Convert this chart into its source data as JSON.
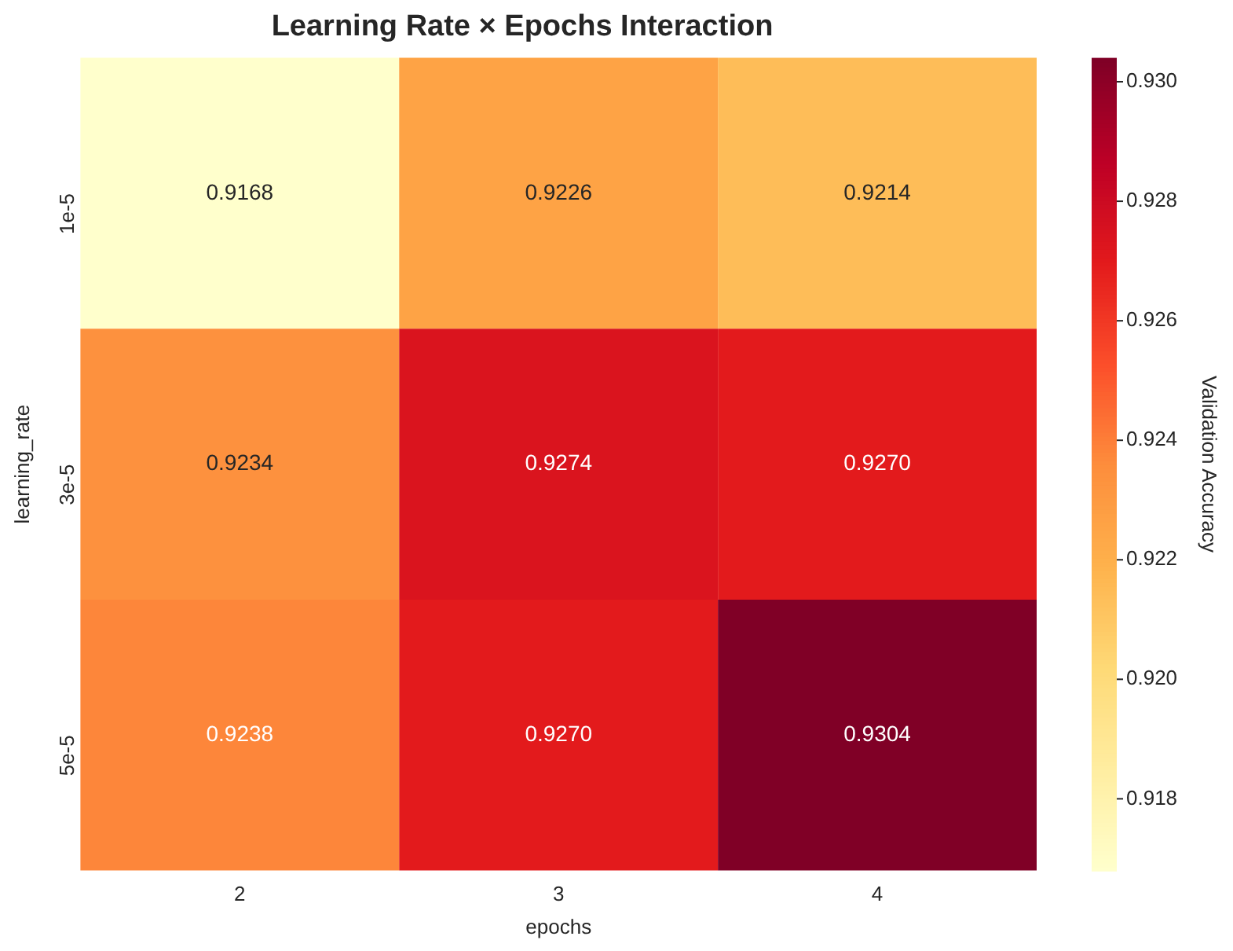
{
  "chart_data": {
    "type": "heatmap",
    "title": "Learning Rate × Epochs Interaction",
    "xlabel": "epochs",
    "ylabel": "learning_rate",
    "clabel": "Validation Accuracy",
    "categories": [
      "2",
      "3",
      "4"
    ],
    "y_categories": [
      "1e-5",
      "3e-5",
      "5e-5"
    ],
    "cells": [
      [
        0.9168,
        0.9226,
        0.9214
      ],
      [
        0.9234,
        0.9274,
        0.927
      ],
      [
        0.9238,
        0.927,
        0.9304
      ]
    ],
    "cell_labels": [
      [
        "0.9168",
        "0.9226",
        "0.9214"
      ],
      [
        "0.9234",
        "0.9274",
        "0.9270"
      ],
      [
        "0.9238",
        "0.9270",
        "0.9304"
      ]
    ],
    "clim": [
      0.9168,
      0.9304
    ],
    "cticks": [
      0.918,
      {
        "value": 0.92,
        "label": "0.920"
      },
      0.922,
      0.924,
      0.926,
      0.928,
      {
        "value": 0.93,
        "label": "0.930"
      }
    ]
  }
}
